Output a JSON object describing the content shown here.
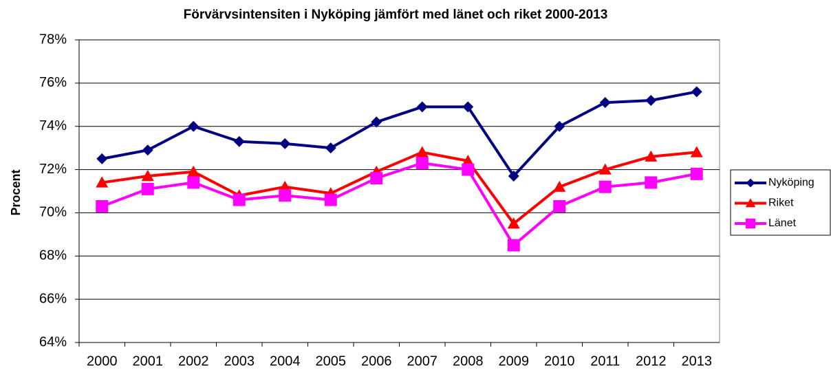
{
  "chart_data": {
    "type": "line",
    "title": "Förvärvsintensiten i Nyköping jämfört med länet och riket 2000-2013",
    "y_label": "Procent",
    "categories": [
      "2000",
      "2001",
      "2002",
      "2003",
      "2004",
      "2005",
      "2006",
      "2007",
      "2008",
      "2009",
      "2010",
      "2011",
      "2012",
      "2013"
    ],
    "series": [
      {
        "name": "Nyköping",
        "color": "#000080",
        "marker": "diamond",
        "values": [
          72.5,
          72.9,
          74.0,
          73.3,
          73.2,
          73.0,
          74.2,
          74.9,
          74.9,
          71.7,
          74.0,
          75.1,
          75.2,
          75.6
        ]
      },
      {
        "name": "Riket",
        "color": "#ff0000",
        "marker": "triangle",
        "values": [
          71.4,
          71.7,
          71.9,
          70.8,
          71.2,
          70.9,
          71.9,
          72.8,
          72.4,
          69.5,
          71.2,
          72.0,
          72.6,
          72.8
        ]
      },
      {
        "name": "Länet",
        "color": "#ff00ff",
        "marker": "square",
        "values": [
          70.3,
          71.1,
          71.4,
          70.6,
          70.8,
          70.6,
          71.6,
          72.3,
          72.0,
          68.5,
          70.3,
          71.2,
          71.4,
          71.8
        ]
      }
    ],
    "ylim": [
      64,
      78
    ],
    "yticks": [
      {
        "value": 64,
        "label": "64%"
      },
      {
        "value": 66,
        "label": "66%"
      },
      {
        "value": 68,
        "label": "68%"
      },
      {
        "value": 70,
        "label": "70%"
      },
      {
        "value": 72,
        "label": "72%"
      },
      {
        "value": 74,
        "label": "74%"
      },
      {
        "value": 76,
        "label": "76%"
      },
      {
        "value": 78,
        "label": "78%"
      }
    ],
    "grid": true,
    "legend": "right"
  }
}
